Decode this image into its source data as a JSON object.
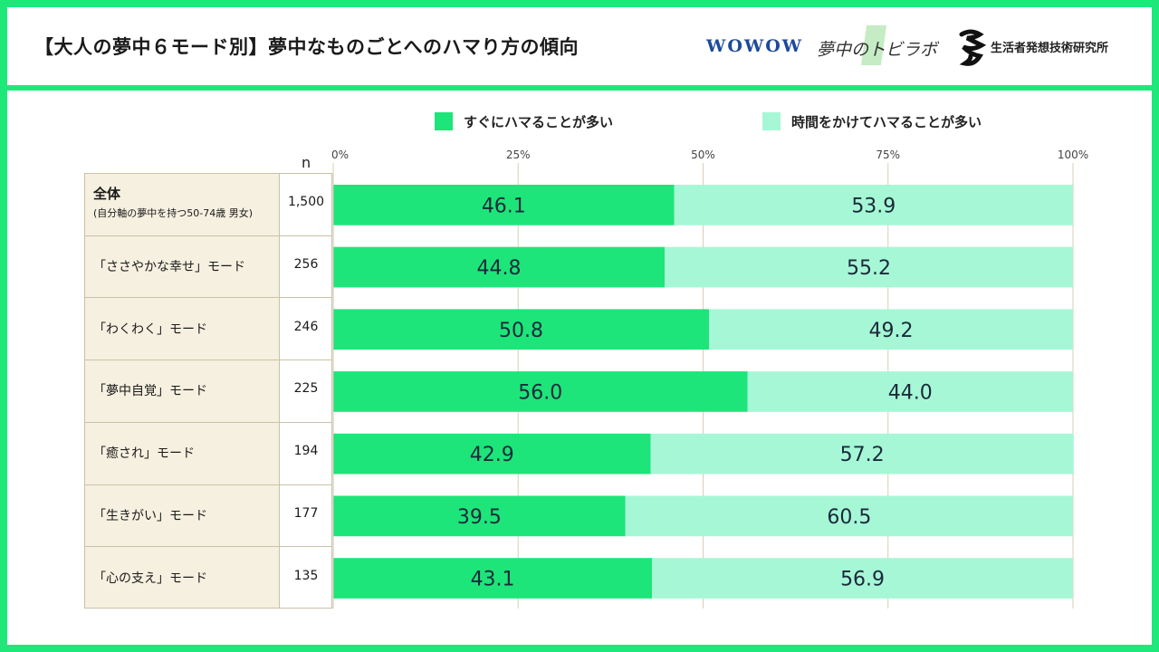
{
  "header": {
    "title": "【大人の夢中６モード別】夢中なものごとへのハマり方の傾向",
    "logos": {
      "wowow": "WOWOW",
      "lab": "夢中のトビラボ",
      "hakuhodo": "生活者発想技術研究所"
    }
  },
  "colors": {
    "frame": "#1fe87a",
    "series_quick": "#1de57a",
    "series_slow": "#a6f7d6",
    "label_bg": "#f6f0e0",
    "title_text": "#1a1a1a",
    "wowow_blue": "#1c4a9c"
  },
  "legend": [
    {
      "label": "すぐにハマることが多い",
      "color": "#1de57a"
    },
    {
      "label": "時間をかけてハマることが多い",
      "color": "#a6f7d6"
    }
  ],
  "table": {
    "n_header": "n"
  },
  "chart_data": {
    "type": "bar",
    "orientation": "horizontal",
    "stacked": true,
    "title": "【大人の夢中６モード別】夢中なものごとへのハマり方の傾向",
    "xlim": [
      0,
      100
    ],
    "x_ticks": [
      "0%",
      "25%",
      "50%",
      "75%",
      "100%"
    ],
    "grid": true,
    "legend_position": "top",
    "categories": [
      {
        "label": "全体",
        "sublabel": "(自分軸の夢中を持つ50-74歳 男女)",
        "n": "1,500"
      },
      {
        "label": "「ささやかな幸せ」モード",
        "n": "256"
      },
      {
        "label": "「わくわく」モード",
        "n": "246"
      },
      {
        "label": "「夢中自覚」モード",
        "n": "225"
      },
      {
        "label": "「癒され」モード",
        "n": "194"
      },
      {
        "label": "「生きがい」モード",
        "n": "177"
      },
      {
        "label": "「心の支え」モード",
        "n": "135"
      }
    ],
    "series": [
      {
        "name": "すぐにハマることが多い",
        "values": [
          46.1,
          44.8,
          50.8,
          56.0,
          42.9,
          39.5,
          43.1
        ]
      },
      {
        "name": "時間をかけてハマることが多い",
        "values": [
          53.9,
          55.2,
          49.2,
          44.0,
          57.2,
          60.5,
          56.9
        ]
      }
    ]
  }
}
